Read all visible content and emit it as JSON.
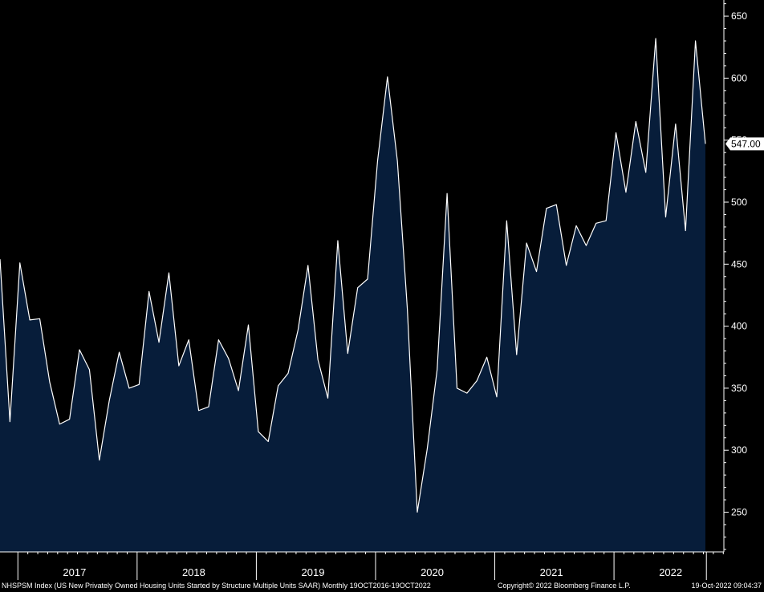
{
  "chart_data": {
    "type": "area",
    "security": "NHSPSM Index",
    "x_start": "2016-10",
    "x_end": "2022-09",
    "frequency": "monthly",
    "values": [
      454,
      323,
      451,
      405,
      406,
      355,
      321,
      325,
      381,
      365,
      292,
      340,
      379,
      350,
      353,
      428,
      387,
      443,
      368,
      389,
      332,
      335,
      389,
      374,
      348,
      401,
      315,
      307,
      352,
      362,
      397,
      449,
      373,
      342,
      469,
      378,
      431,
      438,
      533,
      601,
      533,
      414,
      250,
      301,
      365,
      507,
      350,
      346,
      356,
      375,
      343,
      485,
      377,
      467,
      444,
      495,
      498,
      449,
      481,
      465,
      483,
      485,
      556,
      508,
      565,
      524,
      632,
      488,
      563,
      477,
      630,
      547
    ],
    "ylim": [
      218,
      663
    ],
    "y_ticks": [
      250,
      300,
      350,
      400,
      450,
      500,
      550,
      600,
      650
    ],
    "x_tick_labels": [
      "2017",
      "2018",
      "2019",
      "2020",
      "2021",
      "2022"
    ],
    "last_value_label": "547.00",
    "grid": false,
    "line_color": "#ffffff",
    "fill_color": "#071d3a",
    "background_color": "#000000"
  },
  "footer": {
    "description": "NHSPSM Index (US New Privately Owned Housing Units Started by Structure Multiple Units SAAR)  Monthly 19OCT2016-19OCT2022",
    "copyright": "Copyright© 2022 Bloomberg Finance L.P.",
    "timestamp": "19-Oct-2022 09:04:37"
  }
}
